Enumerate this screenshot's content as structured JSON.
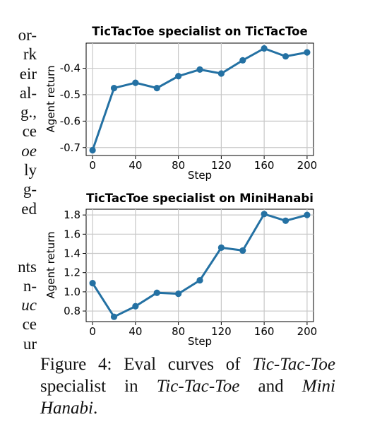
{
  "left_text_fragments": [
    "or-",
    "rk",
    "eir",
    "al-",
    "g.,",
    "ce",
    "oe",
    "ly",
    "g-",
    "ed",
    "",
    "",
    "nts",
    "n-",
    "uc",
    "ce",
    "ur"
  ],
  "left_text_italic_rows": [
    6,
    14
  ],
  "caption": {
    "prefix": "Figure 4:  Eval curves of ",
    "game_a": "Tic-Tac-Toe",
    "middle": " specialist in ",
    "game_b": "Tic-Tac-Toe",
    "joiner": " and ",
    "game_c": "Mini Hanabi",
    "suffix": "."
  },
  "colors": {
    "line": "#2471a3",
    "grid": "#c8c8c8",
    "axis": "#000000"
  },
  "chart_data": [
    {
      "type": "line",
      "title": "TicTacToe specialist on TicTacToe",
      "xlabel": "Step",
      "ylabel": "Agent return",
      "x": [
        0,
        20,
        40,
        60,
        80,
        100,
        120,
        140,
        160,
        180,
        200
      ],
      "series": [
        {
          "values": [
            -0.71,
            -0.475,
            -0.455,
            -0.475,
            -0.43,
            -0.405,
            -0.42,
            -0.37,
            -0.325,
            -0.355,
            -0.34
          ]
        }
      ],
      "xlim": [
        -6,
        206
      ],
      "ylim": [
        -0.73,
        -0.305
      ],
      "xticks": [
        0,
        40,
        80,
        120,
        160,
        200
      ],
      "xtick_labels": [
        "0",
        "40",
        "80",
        "120",
        "160",
        "200"
      ],
      "yticks": [
        -0.7,
        -0.6,
        -0.5,
        -0.4
      ],
      "ytick_labels": [
        "-0.7",
        "-0.6",
        "-0.5",
        "-0.4"
      ],
      "grid": true
    },
    {
      "type": "line",
      "title": "TicTacToe specialist on MiniHanabi",
      "xlabel": "Step",
      "ylabel": "Agent return",
      "x": [
        0,
        20,
        40,
        60,
        80,
        100,
        120,
        140,
        160,
        180,
        200
      ],
      "series": [
        {
          "values": [
            1.09,
            0.74,
            0.85,
            0.99,
            0.98,
            1.12,
            1.46,
            1.43,
            1.81,
            1.74,
            1.8
          ]
        }
      ],
      "xlim": [
        -6,
        206
      ],
      "ylim": [
        0.69,
        1.86
      ],
      "xticks": [
        0,
        40,
        80,
        120,
        160,
        200
      ],
      "xtick_labels": [
        "0",
        "40",
        "80",
        "120",
        "160",
        "200"
      ],
      "yticks": [
        0.8,
        1.0,
        1.2,
        1.4,
        1.6,
        1.8
      ],
      "ytick_labels": [
        "0.8",
        "1.0",
        "1.2",
        "1.4",
        "1.6",
        "1.8"
      ],
      "grid": true
    }
  ]
}
